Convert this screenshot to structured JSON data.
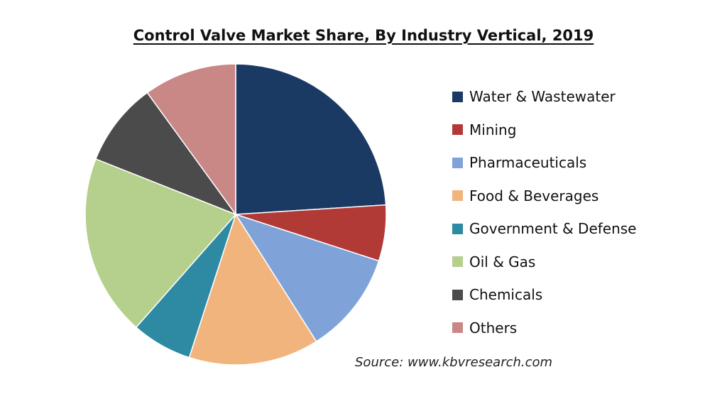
{
  "chart_data": {
    "type": "pie",
    "title": "Control Valve Market Share, By Industry Vertical, 2019",
    "legend_position": "right",
    "slices": [
      {
        "label": "Water & Wastewater",
        "value": 24.0,
        "color": "#1b3a63"
      },
      {
        "label": "Mining",
        "value": 6.0,
        "color": "#b13a36"
      },
      {
        "label": "Pharmaceuticals",
        "value": 11.0,
        "color": "#7fa3d8"
      },
      {
        "label": "Food & Beverages",
        "value": 14.0,
        "color": "#f2b47d"
      },
      {
        "label": "Government & Defense",
        "value": 6.5,
        "color": "#2e8aa3"
      },
      {
        "label": "Oil & Gas",
        "value": 19.5,
        "color": "#b5cf8c"
      },
      {
        "label": "Chemicals",
        "value": 9.0,
        "color": "#4b4b4b"
      },
      {
        "label": "Others",
        "value": 10.0,
        "color": "#c98785"
      }
    ]
  },
  "source": "Source: www.kbvresearch.com"
}
